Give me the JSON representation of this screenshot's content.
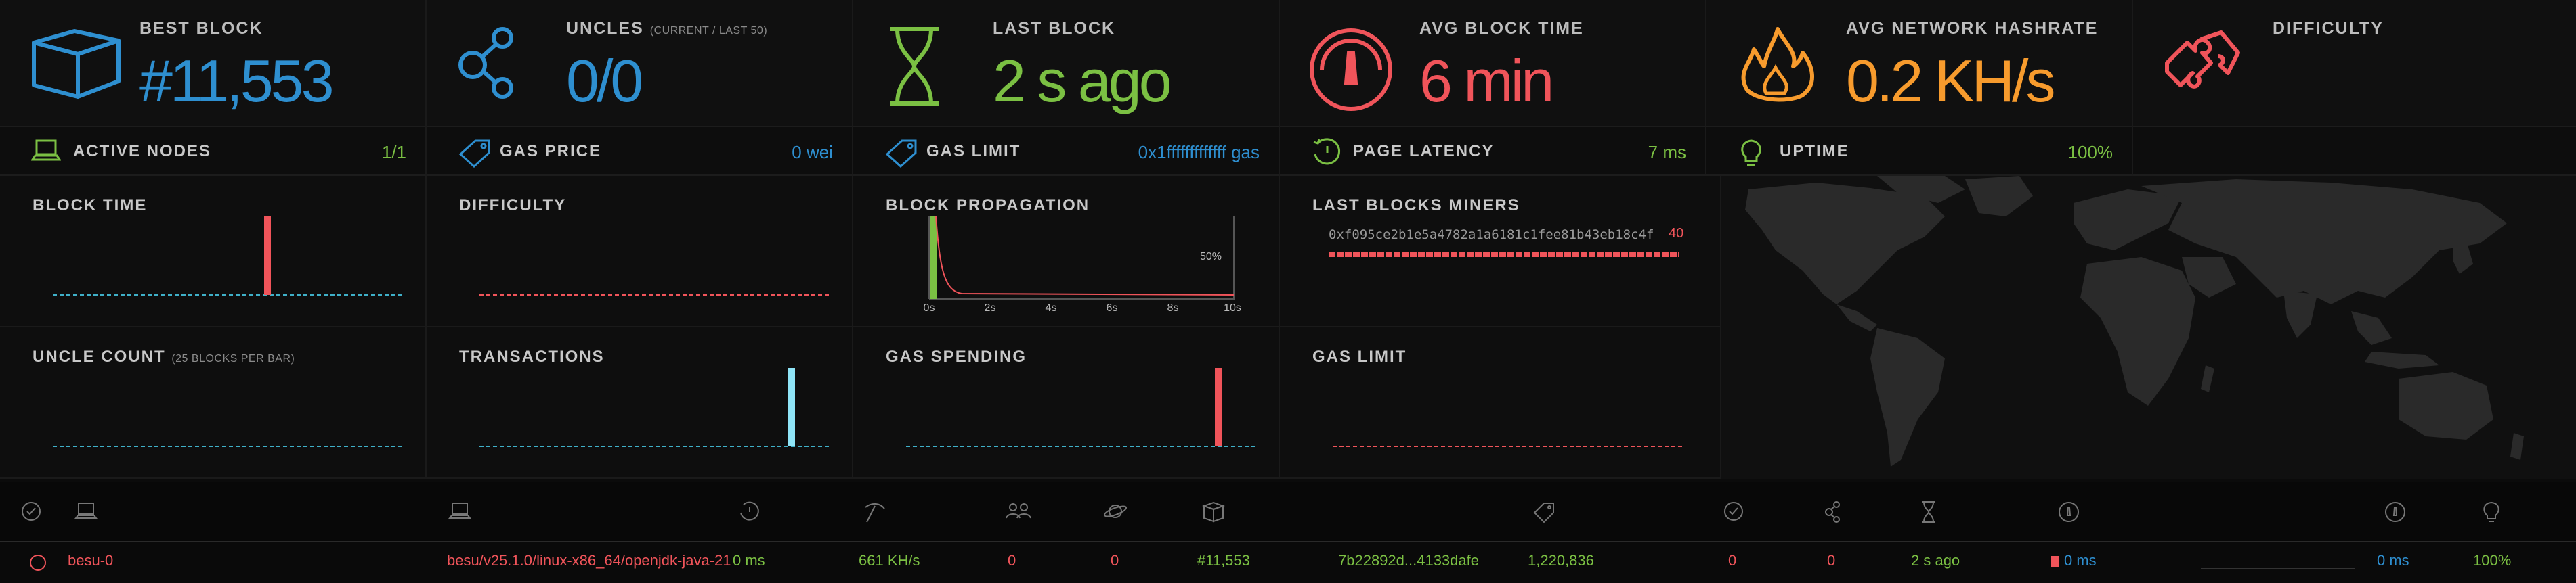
{
  "colors": {
    "blue": "#2e8fd0",
    "green": "#7bc043",
    "red": "#f0545a",
    "orange": "#f79b2d",
    "gray": "#bdbdbd"
  },
  "stats": {
    "best_block": {
      "title": "BEST BLOCK",
      "value": "#11,553",
      "icon": "cube-icon"
    },
    "uncles": {
      "title": "UNCLES",
      "subtitle": "(CURRENT / LAST 50)",
      "value": "0/0",
      "icon": "uncles-icon"
    },
    "last_block": {
      "title": "LAST BLOCK",
      "value": "2 s ago",
      "icon": "hourglass-icon"
    },
    "avg_block_time": {
      "title": "AVG BLOCK TIME",
      "value": "6 min",
      "icon": "gauge-icon"
    },
    "avg_hashrate": {
      "title": "AVG NETWORK HASHRATE",
      "value": "0.2 KH/s",
      "icon": "fire-icon"
    },
    "difficulty": {
      "title": "DIFFICULTY",
      "value": "",
      "icon": "puzzle-icon"
    }
  },
  "info_row": {
    "active_nodes": {
      "label": "ACTIVE NODES",
      "value": "1/1"
    },
    "gas_price": {
      "label": "GAS PRICE",
      "value": "0 wei"
    },
    "gas_limit": {
      "label": "GAS LIMIT",
      "value": "0x1fffffffffffff gas"
    },
    "page_latency": {
      "label": "PAGE LATENCY",
      "value": "7 ms"
    },
    "uptime": {
      "label": "UPTIME",
      "value": "100%"
    }
  },
  "panels": {
    "block_time": "BLOCK TIME",
    "difficulty": "DIFFICULTY",
    "block_propagation": "BLOCK PROPAGATION",
    "last_blocks_miners": "LAST BLOCKS MINERS",
    "uncle_count": "UNCLE COUNT",
    "uncle_count_sub": "(25 BLOCKS PER BAR)",
    "transactions": "TRANSACTIONS",
    "gas_spending": "GAS SPENDING",
    "gas_limit": "GAS LIMIT"
  },
  "propagation": {
    "tick_labels": [
      "0s",
      "2s",
      "4s",
      "6s",
      "8s",
      "10s"
    ],
    "pct_label": "50%"
  },
  "miners": {
    "address": "0xf095ce2b1e5a4782a1a6181c1fee81b43eb18c4f",
    "count": "40"
  },
  "node_row": {
    "name": "besu-0",
    "client": "besu/v25.1.0/linux-x86_64/openjdk-java-21",
    "latency": "0 ms",
    "hashrate": "661 KH/s",
    "peers": "0",
    "pending": "0",
    "block": "#11,553",
    "hash": "7b22892d...4133dafe",
    "difficulty": "1,220,836",
    "uncles": "0",
    "tx": "0",
    "last_block": "2 s ago",
    "propagation": "0 ms",
    "avg_propagation": "0 ms",
    "uptime": "100%"
  }
}
